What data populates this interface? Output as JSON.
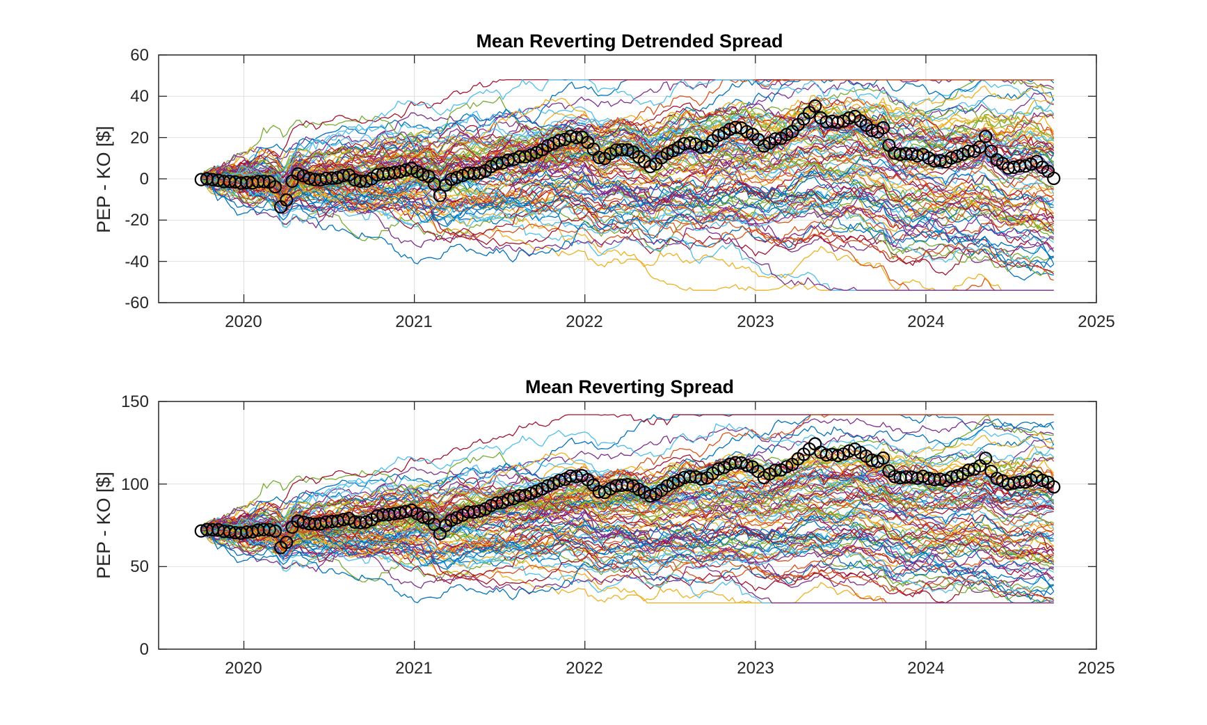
{
  "figure": {
    "background": "#ffffff",
    "series_colors": [
      "#0072bd",
      "#d95319",
      "#edb120",
      "#7e2f8e",
      "#77ac30",
      "#4dbeee",
      "#a2142f"
    ],
    "observed_color": "#000000"
  },
  "chart_data": [
    {
      "type": "line",
      "title": "Mean Reverting Detrended Spread",
      "ylabel": "PEP - KO [$]",
      "xlabel": "",
      "xlim": [
        2019.5,
        2025
      ],
      "ylim": [
        -60,
        60
      ],
      "xticks": [
        2020,
        2021,
        2022,
        2023,
        2024,
        2025
      ],
      "xtick_labels": [
        "2020",
        "2021",
        "2022",
        "2023",
        "2024",
        "2025"
      ],
      "yticks": [
        -60,
        -40,
        -20,
        0,
        20,
        40,
        60
      ],
      "ytick_labels": [
        "-60",
        "-40",
        "-20",
        "0",
        "20",
        "40",
        "60"
      ],
      "grid": true,
      "x_start": 2019.75,
      "x_end": 2024.75,
      "simulated_paths": {
        "count": 100,
        "start_value": 0,
        "end_range": [
          -48,
          40
        ],
        "overall_range": [
          -54,
          48
        ]
      },
      "observed_series": {
        "marker": "circle",
        "x": [
          2019.75,
          2019.85,
          2019.95,
          2020.05,
          2020.15,
          2020.2,
          2020.22,
          2020.25,
          2020.3,
          2020.4,
          2020.5,
          2020.6,
          2020.7,
          2020.8,
          2020.9,
          2021.0,
          2021.05,
          2021.1,
          2021.15,
          2021.2,
          2021.3,
          2021.4,
          2021.5,
          2021.6,
          2021.7,
          2021.8,
          2021.9,
          2022.0,
          2022.1,
          2022.15,
          2022.2,
          2022.3,
          2022.4,
          2022.45,
          2022.5,
          2022.6,
          2022.7,
          2022.8,
          2022.9,
          2023.0,
          2023.05,
          2023.1,
          2023.2,
          2023.3,
          2023.35,
          2023.4,
          2023.5,
          2023.6,
          2023.7,
          2023.75,
          2023.8,
          2023.9,
          2024.0,
          2024.05,
          2024.1,
          2024.2,
          2024.3,
          2024.35,
          2024.4,
          2024.5,
          2024.6,
          2024.65,
          2024.7,
          2024.75
        ],
        "y": [
          0,
          -1,
          -2,
          -2,
          -1,
          -6,
          -15,
          -10,
          3,
          0,
          0,
          2,
          -2,
          3,
          3,
          5,
          2,
          0,
          -8,
          0,
          2,
          3,
          8,
          10,
          12,
          17,
          20,
          20,
          8,
          12,
          15,
          12,
          5,
          10,
          13,
          18,
          15,
          22,
          25,
          21,
          16,
          18,
          22,
          30,
          35,
          27,
          28,
          30,
          22,
          25,
          12,
          12,
          11,
          9,
          8,
          12,
          14,
          20,
          10,
          5,
          7,
          8,
          5,
          0
        ]
      }
    },
    {
      "type": "line",
      "title": "Mean Reverting Spread",
      "ylabel": "PEP - KO [$]",
      "xlabel": "",
      "xlim": [
        2019.5,
        2025
      ],
      "ylim": [
        0,
        150
      ],
      "xticks": [
        2020,
        2021,
        2022,
        2023,
        2024,
        2025
      ],
      "xtick_labels": [
        "2020",
        "2021",
        "2022",
        "2023",
        "2024",
        "2025"
      ],
      "yticks": [
        0,
        50,
        100,
        150
      ],
      "ytick_labels": [
        "0",
        "50",
        "100",
        "150"
      ],
      "grid": true,
      "x_start": 2019.75,
      "x_end": 2024.75,
      "simulated_paths": {
        "count": 100,
        "start_value": 72,
        "end_range": [
          60,
          138
        ],
        "overall_range": [
          28,
          142
        ]
      },
      "observed_series": {
        "marker": "circle",
        "x": [
          2019.75,
          2019.85,
          2019.95,
          2020.05,
          2020.15,
          2020.2,
          2020.22,
          2020.25,
          2020.3,
          2020.4,
          2020.5,
          2020.6,
          2020.7,
          2020.8,
          2020.9,
          2021.0,
          2021.05,
          2021.1,
          2021.15,
          2021.2,
          2021.3,
          2021.4,
          2021.5,
          2021.6,
          2021.7,
          2021.8,
          2021.9,
          2022.0,
          2022.1,
          2022.15,
          2022.2,
          2022.3,
          2022.4,
          2022.45,
          2022.5,
          2022.6,
          2022.7,
          2022.8,
          2022.9,
          2023.0,
          2023.05,
          2023.1,
          2023.2,
          2023.3,
          2023.35,
          2023.4,
          2023.5,
          2023.6,
          2023.7,
          2023.75,
          2023.8,
          2023.9,
          2024.0,
          2024.05,
          2024.1,
          2024.2,
          2024.3,
          2024.35,
          2024.4,
          2024.5,
          2024.6,
          2024.65,
          2024.7,
          2024.75
        ],
        "y": [
          72,
          72,
          70,
          71,
          73,
          70,
          60,
          65,
          78,
          76,
          77,
          79,
          76,
          82,
          82,
          84,
          80,
          78,
          70,
          78,
          82,
          84,
          89,
          92,
          95,
          100,
          104,
          105,
          93,
          97,
          100,
          98,
          92,
          96,
          100,
          105,
          103,
          110,
          113,
          110,
          104,
          107,
          111,
          119,
          124,
          117,
          118,
          121,
          113,
          116,
          104,
          104,
          104,
          103,
          102,
          106,
          110,
          115,
          104,
          100,
          102,
          104,
          102,
          98
        ]
      }
    }
  ]
}
